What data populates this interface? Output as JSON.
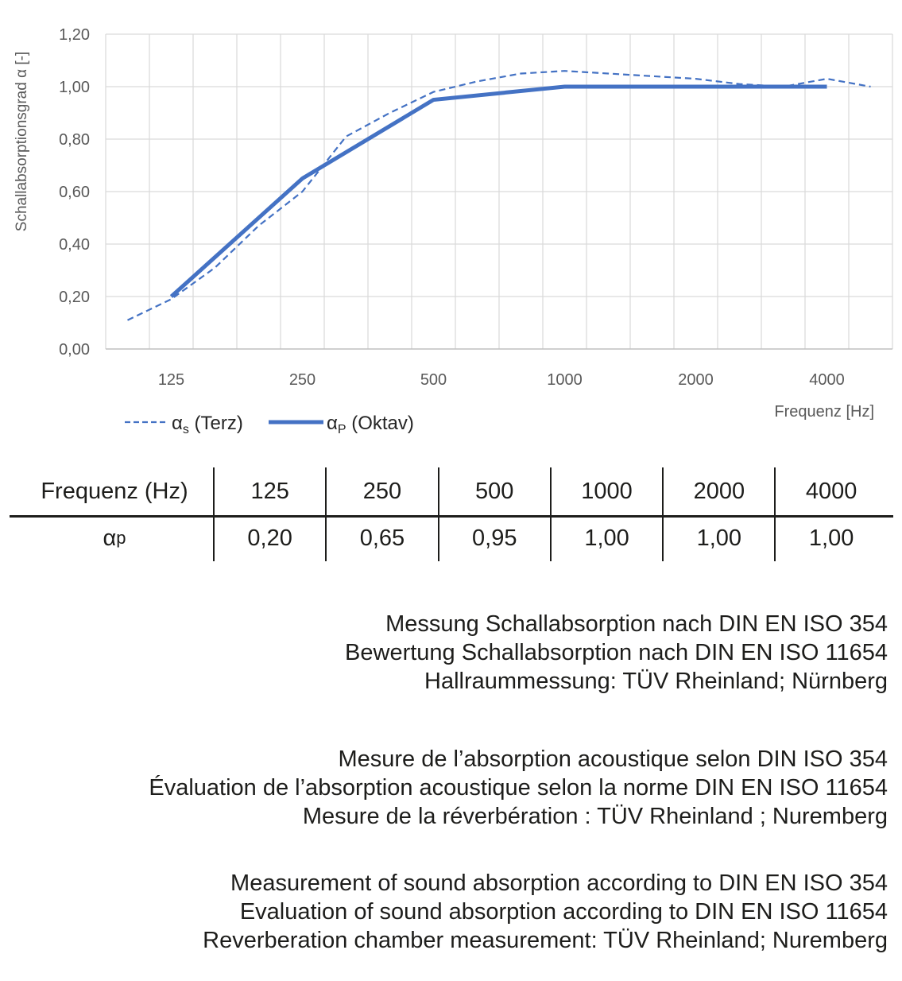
{
  "chart": {
    "y_axis_title": "Schallabsorptionsgrad α [-]",
    "x_axis_title": "Frequenz [Hz]",
    "y_tick_labels": [
      "0,00",
      "0,20",
      "0,40",
      "0,60",
      "0,80",
      "1,00",
      "1,20"
    ],
    "x_tick_labels": [
      "125",
      "250",
      "500",
      "1000",
      "2000",
      "4000"
    ],
    "legend": [
      {
        "label_alpha": "α",
        "label_sub": "s",
        "label_text": " (Terz)",
        "style": "dashed"
      },
      {
        "label_alpha": "α",
        "label_sub": "P",
        "label_text": " (Oktav)",
        "style": "solid"
      }
    ],
    "colors": {
      "line": "#4472C4",
      "grid": "#D9D9D9",
      "axis": "#BFBFBF",
      "tick_text": "#595959",
      "legend_text": "#262626"
    }
  },
  "chart_data": {
    "type": "line",
    "title": "",
    "xlabel": "Frequenz [Hz]",
    "ylabel": "Schallabsorptionsgrad α [-]",
    "ylim": [
      0,
      1.2
    ],
    "y_tick_step": 0.2,
    "grid": true,
    "legend_position": "bottom-left",
    "x_axis_note": "18 third-octave band categories, tick labels shown at octave bands",
    "categories_hz": [
      100,
      125,
      160,
      200,
      250,
      315,
      400,
      500,
      630,
      800,
      1000,
      1250,
      1600,
      2000,
      2500,
      3150,
      4000,
      5000
    ],
    "x_tick_category_indices": [
      1,
      4,
      7,
      10,
      13,
      16
    ],
    "series": [
      {
        "name": "αs (Terz)",
        "style": "dashed",
        "values": [
          0.11,
          0.19,
          0.31,
          0.47,
          0.6,
          0.81,
          0.9,
          0.98,
          1.02,
          1.05,
          1.06,
          1.05,
          1.04,
          1.03,
          1.01,
          1.0,
          1.03,
          1.0
        ]
      },
      {
        "name": "αP (Oktav)",
        "style": "solid",
        "category_indices": [
          1,
          4,
          7,
          10,
          13,
          16
        ],
        "values": [
          0.2,
          0.65,
          0.95,
          1.0,
          1.0,
          1.0
        ]
      }
    ]
  },
  "table": {
    "header_label": "Frequenz (Hz)",
    "header_values": [
      "125",
      "250",
      "500",
      "1000",
      "2000",
      "4000"
    ],
    "row_label_alpha": "α",
    "row_label_sub": "p",
    "row_values": [
      "0,20",
      "0,65",
      "0,95",
      "1,00",
      "1,00",
      "1,00"
    ]
  },
  "notes": {
    "de": [
      "Messung Schallabsorption nach DIN EN ISO 354",
      "Bewertung Schallabsorption nach DIN EN ISO 11654",
      "Hallraummessung: TÜV Rheinland; Nürnberg"
    ],
    "fr": [
      "Mesure de l’absorption acoustique selon DIN ISO 354",
      "Évaluation de l’absorption acoustique selon la norme DIN EN ISO 11654",
      "Mesure de la réverbération : TÜV Rheinland ; Nuremberg"
    ],
    "en": [
      "Measurement of sound absorption according to DIN EN ISO 354",
      "Evaluation of sound absorption according to DIN EN ISO 11654",
      "Reverberation chamber measurement: TÜV Rheinland; Nuremberg"
    ]
  }
}
